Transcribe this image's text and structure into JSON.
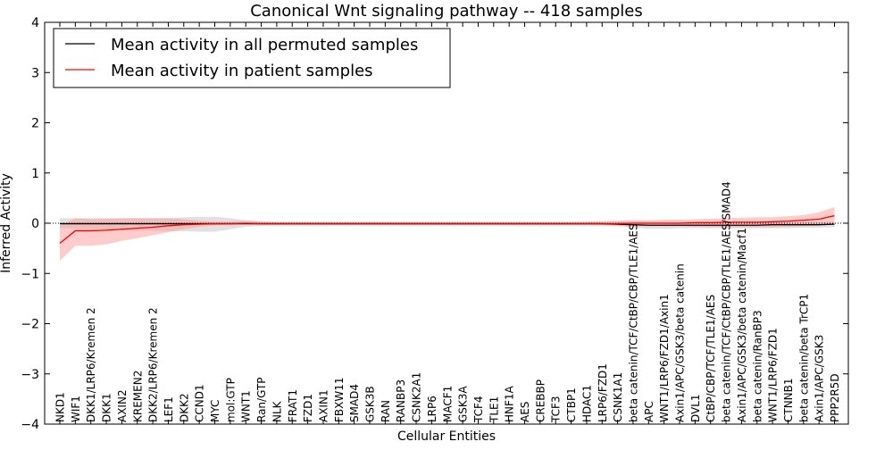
{
  "chart_data": {
    "type": "line",
    "title": "Canonical Wnt signaling pathway -- 418 samples",
    "xlabel": "Cellular Entities",
    "ylabel": "Inferred Activity",
    "ylim": [
      -4,
      4
    ],
    "yticks": [
      -4,
      -3,
      -2,
      -1,
      0,
      1,
      2,
      3,
      4
    ],
    "ytick_labels": [
      "−4",
      "−3",
      "−2",
      "−1",
      "0",
      "1",
      "2",
      "3",
      "4"
    ],
    "legend_position": "top-left",
    "categories": [
      "NKD1",
      "WIF1",
      "DKK1/LRP6/Kremen 2",
      "DKK1",
      "AXIN2",
      "KREMEN2",
      "DKK2/LRP6/Kremen 2",
      "LEF1",
      "DKK2",
      "CCND1",
      "MYC",
      "mol:GTP",
      "WNT1",
      "Ran/GTP",
      "NLK",
      "FRAT1",
      "FZD1",
      "AXIN1",
      "FBXW11",
      "SMAD4",
      "GSK3B",
      "RAN",
      "RANBP3",
      "CSNK2A1",
      "LRP6",
      "MACF1",
      "GSK3A",
      "TCF4",
      "TLE1",
      "HNF1A",
      "AES",
      "CREBBP",
      "TCF3",
      "CTBP1",
      "HDAC1",
      "LRP6/FZD1",
      "CSNK1A1",
      "beta catenin/TCF/CtBP/CBP/TLE1/AES",
      "APC",
      "WNT1/LRP6/FZD1/Axin1",
      "Axin1/APC/GSK3/beta catenin",
      "DVL1",
      "CtBP/CBP/TCF/TLE1/AES",
      "beta catenin/TCF/CtBP/CBP/TLE1/AES/SMAD4",
      "Axin1/APC/GSK3/beta catenin/Macf1",
      "beta catenin/RanBP3",
      "WNT1/LRP6/FZD1",
      "CTNNB1",
      "beta catenin/beta TrCP1",
      "Axin1/APC/GSK3",
      "PPP2R5D"
    ],
    "series": [
      {
        "name": "Mean activity in all permuted samples",
        "color": "#000000",
        "band_color": "#bdbdbd",
        "values": [
          -0.01,
          -0.01,
          -0.01,
          -0.01,
          -0.01,
          -0.01,
          -0.01,
          -0.01,
          -0.01,
          -0.01,
          -0.01,
          -0.01,
          -0.01,
          -0.01,
          -0.01,
          -0.01,
          -0.01,
          -0.01,
          -0.01,
          -0.01,
          -0.01,
          -0.01,
          -0.01,
          -0.01,
          -0.01,
          -0.01,
          -0.01,
          -0.01,
          -0.01,
          -0.01,
          -0.01,
          -0.01,
          -0.01,
          -0.01,
          -0.01,
          -0.01,
          -0.02,
          -0.03,
          -0.04,
          -0.04,
          -0.04,
          -0.04,
          -0.04,
          -0.04,
          -0.04,
          -0.04,
          -0.03,
          -0.03,
          -0.03,
          -0.03,
          -0.02
        ],
        "lower": [
          -0.1,
          -0.11,
          -0.12,
          -0.13,
          -0.14,
          -0.15,
          -0.15,
          -0.16,
          -0.16,
          -0.17,
          -0.17,
          -0.12,
          -0.07,
          -0.05,
          -0.04,
          -0.04,
          -0.04,
          -0.04,
          -0.04,
          -0.04,
          -0.04,
          -0.04,
          -0.04,
          -0.04,
          -0.04,
          -0.04,
          -0.04,
          -0.04,
          -0.04,
          -0.04,
          -0.04,
          -0.04,
          -0.04,
          -0.04,
          -0.04,
          -0.04,
          -0.06,
          -0.09,
          -0.11,
          -0.11,
          -0.1,
          -0.1,
          -0.1,
          -0.1,
          -0.1,
          -0.1,
          -0.1,
          -0.1,
          -0.09,
          -0.09,
          -0.08
        ],
        "upper": [
          0.1,
          0.1,
          0.1,
          0.1,
          0.1,
          0.1,
          0.1,
          0.1,
          0.12,
          0.13,
          0.13,
          0.1,
          0.06,
          0.04,
          0.03,
          0.03,
          0.03,
          0.03,
          0.03,
          0.03,
          0.03,
          0.03,
          0.03,
          0.03,
          0.03,
          0.03,
          0.03,
          0.03,
          0.03,
          0.03,
          0.03,
          0.03,
          0.03,
          0.03,
          0.03,
          0.03,
          0.04,
          0.04,
          0.03,
          0.03,
          0.03,
          0.03,
          0.03,
          0.03,
          0.03,
          0.03,
          0.03,
          0.03,
          0.03,
          0.03,
          0.03
        ]
      },
      {
        "name": "Mean activity in patient samples",
        "color": "#ff0000",
        "band_color": "#ff9999",
        "values": [
          -0.4,
          -0.15,
          -0.15,
          -0.14,
          -0.12,
          -0.1,
          -0.08,
          -0.05,
          -0.03,
          -0.02,
          -0.01,
          -0.01,
          0.0,
          -0.01,
          -0.01,
          -0.01,
          -0.01,
          -0.01,
          -0.01,
          -0.01,
          -0.01,
          -0.01,
          -0.01,
          -0.01,
          -0.01,
          -0.01,
          -0.01,
          -0.01,
          -0.01,
          -0.01,
          -0.01,
          -0.01,
          -0.01,
          -0.01,
          -0.01,
          -0.01,
          -0.01,
          0.0,
          0.0,
          0.0,
          0.0,
          0.01,
          0.01,
          0.02,
          0.02,
          0.02,
          0.03,
          0.04,
          0.06,
          0.08,
          0.15
        ],
        "lower": [
          -0.75,
          -0.45,
          -0.45,
          -0.42,
          -0.35,
          -0.3,
          -0.24,
          -0.18,
          -0.12,
          -0.07,
          -0.04,
          -0.03,
          -0.02,
          -0.03,
          -0.03,
          -0.03,
          -0.03,
          -0.03,
          -0.03,
          -0.03,
          -0.03,
          -0.03,
          -0.03,
          -0.03,
          -0.03,
          -0.03,
          -0.03,
          -0.03,
          -0.03,
          -0.03,
          -0.03,
          -0.03,
          -0.03,
          -0.03,
          -0.03,
          -0.04,
          -0.05,
          -0.06,
          -0.06,
          -0.06,
          -0.06,
          -0.07,
          -0.08,
          -0.08,
          -0.08,
          -0.08,
          -0.08,
          -0.07,
          -0.06,
          -0.04,
          -0.02
        ],
        "upper": [
          -0.05,
          0.1,
          0.08,
          0.09,
          0.1,
          0.1,
          0.1,
          0.1,
          0.08,
          0.05,
          0.03,
          0.03,
          0.05,
          0.03,
          0.02,
          0.02,
          0.02,
          0.02,
          0.02,
          0.02,
          0.02,
          0.02,
          0.02,
          0.02,
          0.02,
          0.02,
          0.02,
          0.02,
          0.02,
          0.02,
          0.02,
          0.02,
          0.02,
          0.02,
          0.03,
          0.04,
          0.05,
          0.06,
          0.06,
          0.07,
          0.07,
          0.08,
          0.09,
          0.1,
          0.11,
          0.12,
          0.12,
          0.14,
          0.16,
          0.22,
          0.32
        ]
      }
    ]
  }
}
